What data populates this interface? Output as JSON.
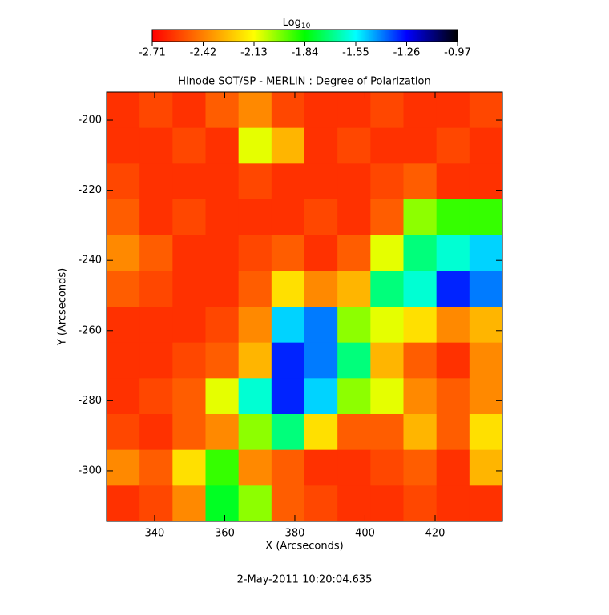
{
  "chart_data": {
    "type": "heatmap",
    "title": "Hinode SOT/SP - MERLIN : Degree of Polarization",
    "xlabel": "X (Arcseconds)",
    "ylabel": "Y (Arcseconds)",
    "footer": "2-May-2011 10:20:04.635",
    "colorbar_title": {
      "text": "Log",
      "subscript": "10"
    },
    "colormap": [
      "#ff0000",
      "#ff8000",
      "#ffff00",
      "#00ff00",
      "#00ffff",
      "#0000ff",
      "#000000"
    ],
    "clim": [
      -2.71,
      -0.97
    ],
    "cticks": [
      -2.71,
      -2.42,
      -2.13,
      -1.84,
      -1.55,
      -1.26,
      -0.97
    ],
    "xlim": [
      326.3,
      439.2
    ],
    "ylim": [
      -314.4,
      -192.0
    ],
    "xticks": [
      340,
      360,
      380,
      400,
      420
    ],
    "yticks": [
      -300,
      -280,
      -260,
      -240,
      -220,
      -200
    ],
    "z": [
      [
        -2.6,
        -2.55,
        -2.6,
        -2.5,
        -2.4,
        -2.55,
        -2.6,
        -2.6,
        -2.55,
        -2.6,
        -2.6,
        -2.55
      ],
      [
        -2.6,
        -2.6,
        -2.55,
        -2.6,
        -2.1,
        -2.3,
        -2.6,
        -2.55,
        -2.6,
        -2.6,
        -2.55,
        -2.6
      ],
      [
        -2.55,
        -2.6,
        -2.6,
        -2.6,
        -2.55,
        -2.6,
        -2.6,
        -2.6,
        -2.55,
        -2.5,
        -2.6,
        -2.6
      ],
      [
        -2.5,
        -2.6,
        -2.55,
        -2.6,
        -2.6,
        -2.6,
        -2.55,
        -2.6,
        -2.5,
        -2.0,
        -1.9,
        -1.9
      ],
      [
        -2.4,
        -2.5,
        -2.6,
        -2.6,
        -2.55,
        -2.5,
        -2.6,
        -2.5,
        -2.1,
        -1.7,
        -1.6,
        -1.5
      ],
      [
        -2.5,
        -2.55,
        -2.6,
        -2.6,
        -2.5,
        -2.2,
        -2.4,
        -2.3,
        -1.7,
        -1.6,
        -1.3,
        -1.4
      ],
      [
        -2.6,
        -2.6,
        -2.6,
        -2.55,
        -2.4,
        -1.5,
        -1.4,
        -2.0,
        -2.1,
        -2.2,
        -2.4,
        -2.3
      ],
      [
        -2.6,
        -2.6,
        -2.55,
        -2.5,
        -2.3,
        -1.3,
        -1.4,
        -1.7,
        -2.3,
        -2.5,
        -2.6,
        -2.4
      ],
      [
        -2.6,
        -2.55,
        -2.5,
        -2.1,
        -1.6,
        -1.3,
        -1.5,
        -2.0,
        -2.1,
        -2.4,
        -2.5,
        -2.4
      ],
      [
        -2.55,
        -2.6,
        -2.5,
        -2.4,
        -2.0,
        -1.7,
        -2.2,
        -2.5,
        -2.5,
        -2.3,
        -2.5,
        -2.2
      ],
      [
        -2.4,
        -2.5,
        -2.2,
        -1.9,
        -2.4,
        -2.5,
        -2.6,
        -2.6,
        -2.55,
        -2.5,
        -2.6,
        -2.3
      ],
      [
        -2.6,
        -2.55,
        -2.4,
        -1.8,
        -2.0,
        -2.5,
        -2.55,
        -2.6,
        -2.6,
        -2.55,
        -2.6,
        -2.6
      ]
    ]
  }
}
